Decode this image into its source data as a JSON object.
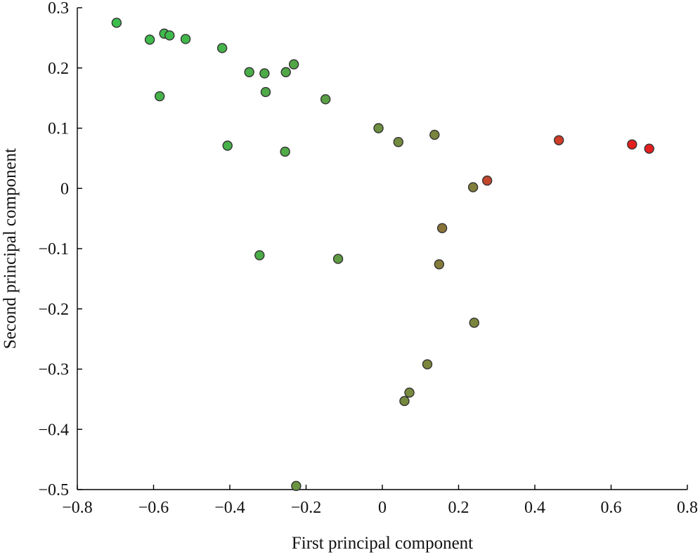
{
  "chart_data": {
    "type": "scatter",
    "title": "",
    "xlabel": "First principal component",
    "ylabel": "Second principal component",
    "xlim": [
      -0.8,
      0.8
    ],
    "ylim": [
      -0.5,
      0.3
    ],
    "xticks": [
      -0.8,
      -0.6,
      -0.4,
      -0.2,
      0,
      0.2,
      0.4,
      0.6,
      0.8
    ],
    "yticks": [
      -0.5,
      -0.4,
      -0.3,
      -0.2,
      -0.1,
      0,
      0.1,
      0.2,
      0.3
    ],
    "xtick_labels": [
      "−0.8",
      "−0.6",
      "−0.4",
      "−0.2",
      "0",
      "0.2",
      "0.4",
      "0.6",
      "0.8"
    ],
    "ytick_labels": [
      "−0.5",
      "−0.4",
      "−0.3",
      "−0.2",
      "−0.1",
      "0",
      "0.1",
      "0.2",
      "0.3"
    ],
    "grid": false,
    "legend": "none",
    "colors": {
      "green": "#3cb84a",
      "olive": "#7a8a3a",
      "red": "#e02222"
    },
    "points": [
      {
        "x": -0.697,
        "y": 0.275,
        "color": "#3dbd4c"
      },
      {
        "x": -0.61,
        "y": 0.247,
        "color": "#3fbb4c"
      },
      {
        "x": -0.572,
        "y": 0.257,
        "color": "#3fbb4c"
      },
      {
        "x": -0.558,
        "y": 0.254,
        "color": "#3fbb4c"
      },
      {
        "x": -0.516,
        "y": 0.248,
        "color": "#42b84b"
      },
      {
        "x": -0.42,
        "y": 0.233,
        "color": "#45b34a"
      },
      {
        "x": -0.584,
        "y": 0.153,
        "color": "#45b34a"
      },
      {
        "x": -0.349,
        "y": 0.193,
        "color": "#4aad48"
      },
      {
        "x": -0.309,
        "y": 0.191,
        "color": "#4cab47"
      },
      {
        "x": -0.253,
        "y": 0.193,
        "color": "#50a846"
      },
      {
        "x": -0.232,
        "y": 0.206,
        "color": "#52a646"
      },
      {
        "x": -0.306,
        "y": 0.16,
        "color": "#4faa47"
      },
      {
        "x": -0.149,
        "y": 0.148,
        "color": "#5a9f44"
      },
      {
        "x": -0.406,
        "y": 0.071,
        "color": "#47b249"
      },
      {
        "x": -0.255,
        "y": 0.061,
        "color": "#4faa47"
      },
      {
        "x": -0.322,
        "y": -0.111,
        "color": "#4aad48"
      },
      {
        "x": -0.116,
        "y": -0.117,
        "color": "#609a43"
      },
      {
        "x": -0.01,
        "y": 0.1,
        "color": "#6d8f40"
      },
      {
        "x": 0.042,
        "y": 0.077,
        "color": "#728b3f"
      },
      {
        "x": 0.137,
        "y": 0.089,
        "color": "#7a853d"
      },
      {
        "x": 0.238,
        "y": 0.002,
        "color": "#807f3b"
      },
      {
        "x": 0.275,
        "y": 0.013,
        "color": "#c2472c"
      },
      {
        "x": 0.157,
        "y": -0.066,
        "color": "#8a7339"
      },
      {
        "x": 0.149,
        "y": -0.126,
        "color": "#837b3a"
      },
      {
        "x": 0.241,
        "y": -0.223,
        "color": "#7c853c"
      },
      {
        "x": 0.118,
        "y": -0.292,
        "color": "#7b863c"
      },
      {
        "x": 0.071,
        "y": -0.339,
        "color": "#778a3d"
      },
      {
        "x": 0.058,
        "y": -0.353,
        "color": "#758a3e"
      },
      {
        "x": -0.226,
        "y": -0.494,
        "color": "#6a943f"
      },
      {
        "x": 0.463,
        "y": 0.08,
        "color": "#cf3c28"
      },
      {
        "x": 0.655,
        "y": 0.073,
        "color": "#e41f1f"
      },
      {
        "x": 0.7,
        "y": 0.066,
        "color": "#e41f1f"
      }
    ]
  }
}
